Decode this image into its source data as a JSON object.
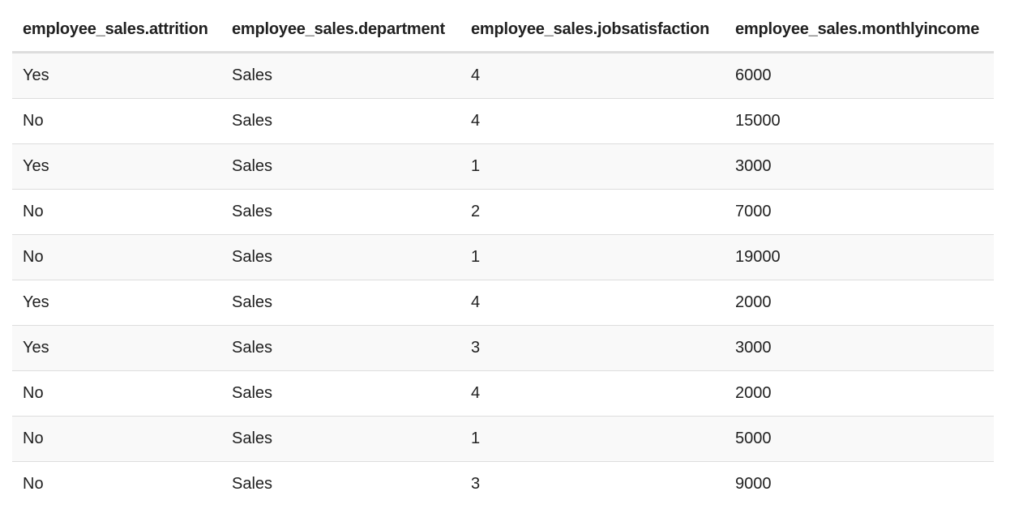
{
  "table": {
    "columns": [
      "employee_sales.attrition",
      "employee_sales.department",
      "employee_sales.jobsatisfaction",
      "employee_sales.monthlyincome"
    ],
    "rows": [
      [
        "Yes",
        "Sales",
        "4",
        "6000"
      ],
      [
        "No",
        "Sales",
        "4",
        "15000"
      ],
      [
        "Yes",
        "Sales",
        "1",
        "3000"
      ],
      [
        "No",
        "Sales",
        "2",
        "7000"
      ],
      [
        "No",
        "Sales",
        "1",
        "19000"
      ],
      [
        "Yes",
        "Sales",
        "4",
        "2000"
      ],
      [
        "Yes",
        "Sales",
        "3",
        "3000"
      ],
      [
        "No",
        "Sales",
        "4",
        "2000"
      ],
      [
        "No",
        "Sales",
        "1",
        "5000"
      ],
      [
        "No",
        "Sales",
        "3",
        "9000"
      ]
    ]
  }
}
